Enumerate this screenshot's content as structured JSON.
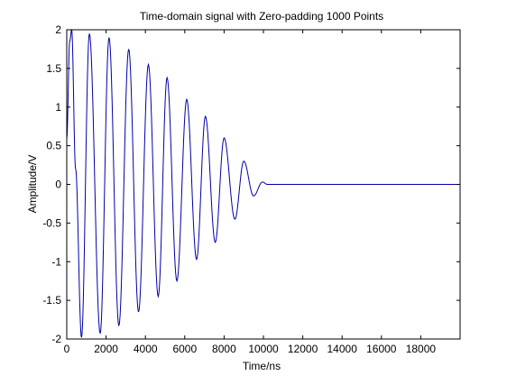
{
  "chart_data": {
    "type": "line",
    "title": "Time-domain signal with Zero-padding 1000 Points",
    "xlabel": "Time/ns",
    "ylabel": "Amplitude/V",
    "xlim": [
      0,
      20000
    ],
    "ylim": [
      -2,
      2
    ],
    "xticks": [
      0,
      2000,
      4000,
      6000,
      8000,
      10000,
      12000,
      14000,
      16000,
      18000
    ],
    "xtick_labels": [
      "0",
      "2000",
      "4000",
      "6000",
      "8000",
      "10000",
      "12000",
      "14000",
      "16000",
      "18000"
    ],
    "yticks": [
      -2,
      -1.5,
      -1,
      -0.5,
      0,
      0.5,
      1,
      1.5,
      2
    ],
    "ytick_labels": [
      "-2",
      "-1.5",
      "-1",
      "-0.5",
      "0",
      "0.5",
      "1",
      "1.5",
      "2"
    ],
    "grid": false,
    "series": [
      {
        "color": "#0000aa",
        "points": [
          [
            0,
            0.6
          ],
          [
            150,
            1.85
          ],
          [
            250,
            2.0
          ],
          [
            450,
            0.2
          ],
          [
            750,
            -1.98
          ],
          [
            1150,
            1.95
          ],
          [
            1700,
            -1.93
          ],
          [
            2150,
            1.9
          ],
          [
            2650,
            -1.83
          ],
          [
            3150,
            1.75
          ],
          [
            3650,
            -1.65
          ],
          [
            4150,
            1.55
          ],
          [
            4650,
            -1.45
          ],
          [
            5100,
            1.38
          ],
          [
            5600,
            -1.25
          ],
          [
            6100,
            1.1
          ],
          [
            6600,
            -0.97
          ],
          [
            7050,
            0.88
          ],
          [
            7550,
            -0.75
          ],
          [
            8000,
            0.6
          ],
          [
            8550,
            -0.45
          ],
          [
            9000,
            0.3
          ],
          [
            9500,
            -0.15
          ],
          [
            9950,
            0.03
          ],
          [
            10200,
            0
          ],
          [
            20000,
            0
          ]
        ]
      }
    ]
  }
}
